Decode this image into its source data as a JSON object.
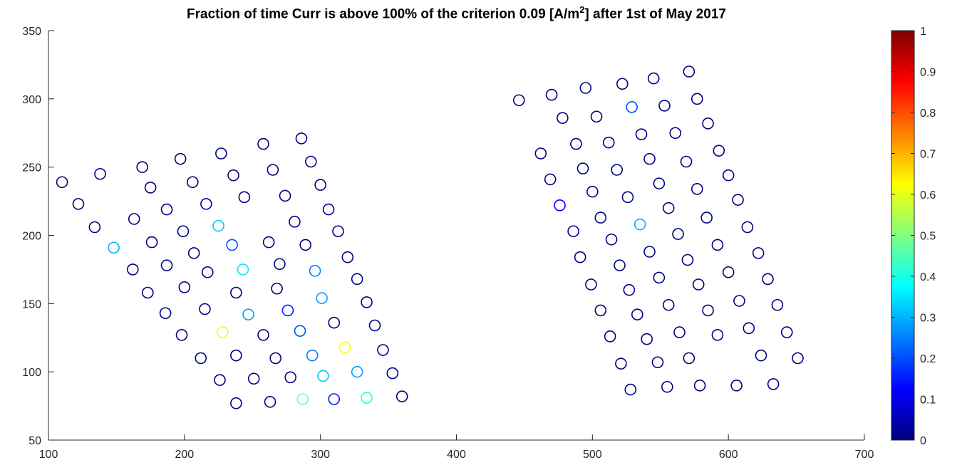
{
  "title": {
    "before": "Fraction of time Curr is above 100% of the criterion 0.09 [A/m",
    "sup": "2",
    "after": "] after 1st of May 2017"
  },
  "chart_data": {
    "type": "scatter",
    "title": "Fraction of time Curr is above 100% of the criterion 0.09 [A/m^2] after 1st of May 2017",
    "xlabel": "",
    "ylabel": "",
    "xlim": [
      100,
      700
    ],
    "ylim": [
      50,
      350
    ],
    "xticks": [
      100,
      200,
      300,
      400,
      500,
      600,
      700
    ],
    "yticks": [
      50,
      100,
      150,
      200,
      250,
      300,
      350
    ],
    "grid": false,
    "marker": "open circle",
    "colormap": "jet",
    "colorbar": {
      "range": [
        0,
        1
      ],
      "ticks": [
        0,
        0.1,
        0.2,
        0.3,
        0.4,
        0.5,
        0.6,
        0.7,
        0.8,
        0.9,
        1
      ],
      "tick_labels": [
        "0",
        "0.1",
        "0.2",
        "0.3",
        "0.4",
        "0.5",
        "0.6",
        "0.7",
        "0.8",
        "0.9",
        "1"
      ],
      "placement": "right"
    },
    "points": [
      [
        110,
        239,
        0
      ],
      [
        138,
        245,
        0
      ],
      [
        169,
        250,
        0
      ],
      [
        197,
        256,
        0
      ],
      [
        227,
        260,
        0
      ],
      [
        258,
        267,
        0
      ],
      [
        286,
        271,
        0
      ],
      [
        122,
        223,
        0
      ],
      [
        175,
        235,
        0
      ],
      [
        206,
        239,
        0
      ],
      [
        236,
        244,
        0
      ],
      [
        265,
        248,
        0
      ],
      [
        293,
        254,
        0
      ],
      [
        134,
        206,
        0
      ],
      [
        187,
        219,
        0
      ],
      [
        216,
        223,
        0.05
      ],
      [
        244,
        228,
        0
      ],
      [
        274,
        229,
        0
      ],
      [
        300,
        237,
        0
      ],
      [
        148,
        191,
        0.3
      ],
      [
        163,
        212,
        0
      ],
      [
        199,
        203,
        0
      ],
      [
        225,
        207,
        0.32
      ],
      [
        281,
        210,
        0
      ],
      [
        306,
        219,
        0
      ],
      [
        176,
        195,
        0
      ],
      [
        207,
        187,
        0
      ],
      [
        235,
        193,
        0.2
      ],
      [
        262,
        195,
        0
      ],
      [
        289,
        193,
        0
      ],
      [
        313,
        203,
        0
      ],
      [
        162,
        175,
        0
      ],
      [
        187,
        178,
        0
      ],
      [
        217,
        173,
        0
      ],
      [
        243,
        175,
        0.35
      ],
      [
        270,
        179,
        0
      ],
      [
        296,
        174,
        0.25
      ],
      [
        320,
        184,
        0
      ],
      [
        173,
        158,
        0
      ],
      [
        200,
        162,
        0
      ],
      [
        238,
        158,
        0
      ],
      [
        268,
        161,
        0
      ],
      [
        301,
        154,
        0.28
      ],
      [
        327,
        168,
        0
      ],
      [
        186,
        143,
        0
      ],
      [
        215,
        146,
        0
      ],
      [
        247,
        142,
        0.28
      ],
      [
        276,
        145,
        0.15
      ],
      [
        310,
        136,
        0
      ],
      [
        334,
        151,
        0
      ],
      [
        198,
        127,
        0
      ],
      [
        228,
        129,
        0.6
      ],
      [
        258,
        127,
        0
      ],
      [
        285,
        130,
        0.2
      ],
      [
        318,
        118,
        0.62
      ],
      [
        340,
        134,
        0
      ],
      [
        212,
        110,
        0
      ],
      [
        238,
        112,
        0
      ],
      [
        267,
        110,
        0
      ],
      [
        294,
        112,
        0.25
      ],
      [
        346,
        116,
        0
      ],
      [
        226,
        94,
        0
      ],
      [
        251,
        95,
        0
      ],
      [
        278,
        96,
        0
      ],
      [
        302,
        97,
        0.32
      ],
      [
        327,
        100,
        0.28
      ],
      [
        353,
        99,
        0
      ],
      [
        238,
        77,
        0
      ],
      [
        263,
        78,
        0
      ],
      [
        287,
        80,
        0.48
      ],
      [
        310,
        80,
        0.15
      ],
      [
        334,
        81,
        0.4
      ],
      [
        360,
        82,
        0
      ],
      [
        446,
        299,
        0
      ],
      [
        470,
        303,
        0
      ],
      [
        495,
        308,
        0
      ],
      [
        522,
        311,
        0
      ],
      [
        545,
        315,
        0
      ],
      [
        571,
        320,
        0
      ],
      [
        478,
        286,
        0
      ],
      [
        503,
        287,
        0
      ],
      [
        529,
        294,
        0.2
      ],
      [
        553,
        295,
        0
      ],
      [
        577,
        300,
        0
      ],
      [
        488,
        267,
        0
      ],
      [
        512,
        268,
        0
      ],
      [
        536,
        274,
        0
      ],
      [
        561,
        275,
        0
      ],
      [
        585,
        282,
        0
      ],
      [
        462,
        260,
        0
      ],
      [
        493,
        249,
        0
      ],
      [
        518,
        248,
        0
      ],
      [
        542,
        256,
        0
      ],
      [
        569,
        254,
        0
      ],
      [
        593,
        262,
        0
      ],
      [
        469,
        241,
        0
      ],
      [
        500,
        232,
        0
      ],
      [
        526,
        228,
        0
      ],
      [
        549,
        238,
        0
      ],
      [
        577,
        234,
        0
      ],
      [
        600,
        244,
        0
      ],
      [
        476,
        222,
        0.12
      ],
      [
        506,
        213,
        0
      ],
      [
        535,
        208,
        0.3
      ],
      [
        556,
        220,
        0
      ],
      [
        584,
        213,
        0
      ],
      [
        607,
        226,
        0
      ],
      [
        486,
        203,
        0
      ],
      [
        514,
        197,
        0
      ],
      [
        542,
        188,
        0
      ],
      [
        563,
        201,
        0
      ],
      [
        592,
        193,
        0
      ],
      [
        614,
        206,
        0
      ],
      [
        491,
        184,
        0
      ],
      [
        520,
        178,
        0
      ],
      [
        549,
        169,
        0
      ],
      [
        570,
        182,
        0
      ],
      [
        600,
        173,
        0
      ],
      [
        622,
        187,
        0
      ],
      [
        499,
        164,
        0
      ],
      [
        527,
        160,
        0
      ],
      [
        556,
        149,
        0
      ],
      [
        578,
        164,
        0
      ],
      [
        608,
        152,
        0
      ],
      [
        629,
        168,
        0
      ],
      [
        506,
        145,
        0
      ],
      [
        533,
        142,
        0
      ],
      [
        585,
        145,
        0
      ],
      [
        636,
        149,
        0
      ],
      [
        513,
        126,
        0
      ],
      [
        540,
        124,
        0
      ],
      [
        564,
        129,
        0
      ],
      [
        592,
        127,
        0
      ],
      [
        615,
        132,
        0
      ],
      [
        643,
        129,
        0
      ],
      [
        521,
        106,
        0
      ],
      [
        548,
        107,
        0
      ],
      [
        571,
        110,
        0
      ],
      [
        624,
        112,
        0
      ],
      [
        651,
        110,
        0
      ],
      [
        528,
        87,
        0
      ],
      [
        555,
        89,
        0
      ],
      [
        579,
        90,
        0
      ],
      [
        606,
        90,
        0
      ],
      [
        633,
        91,
        0
      ]
    ]
  }
}
